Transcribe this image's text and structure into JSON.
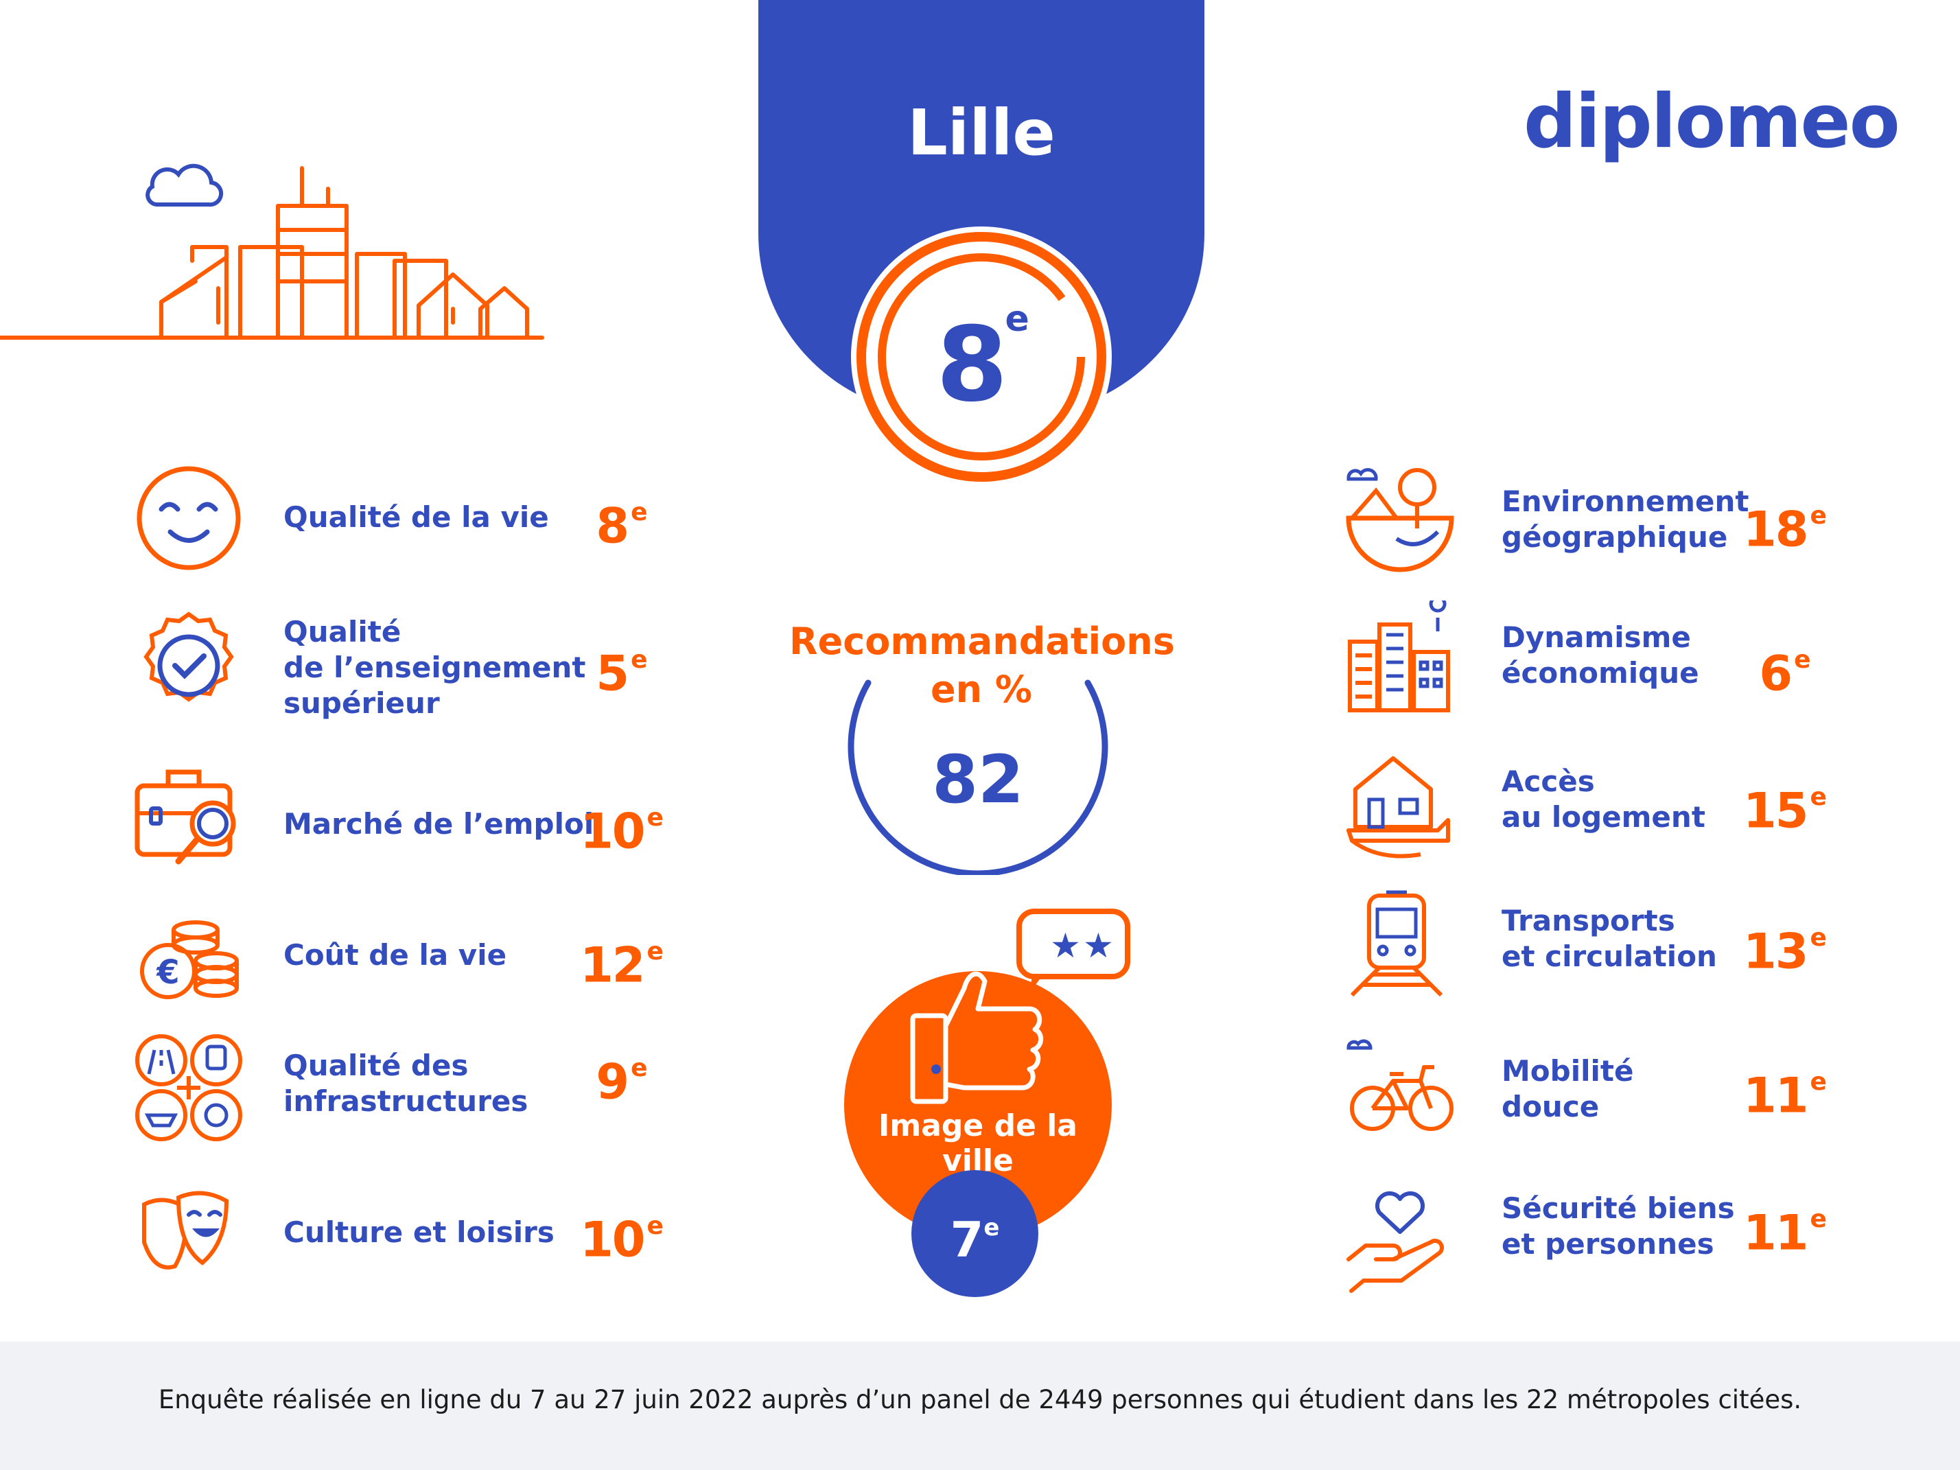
{
  "brand": {
    "logo_text": "diplomeo",
    "color_blue": "#344dbc",
    "color_orange": "#ff5c00"
  },
  "city": {
    "name": "Lille",
    "overall_rank": "8",
    "rank_suffix": "e"
  },
  "recommendation": {
    "title": "Recommandations en %",
    "value": "82"
  },
  "image_ville": {
    "label": "Image de la ville",
    "rank": "7",
    "suffix": "e"
  },
  "criteria_left": [
    {
      "icon": "smiley-icon",
      "label": "Qualité de la vie",
      "rank": "8",
      "suffix": "e"
    },
    {
      "icon": "badge-check-icon",
      "label": "Qualité\nde l’enseignement\nsupérieur",
      "rank": "5",
      "suffix": "e"
    },
    {
      "icon": "briefcase-magnifier-icon",
      "label": "Marché de l’emploi",
      "rank": "10",
      "suffix": "e"
    },
    {
      "icon": "coins-euro-icon",
      "label": "Coût de la vie",
      "rank": "12",
      "suffix": "e"
    },
    {
      "icon": "infrastructure-icon",
      "label": "Qualité des\n infrastructures",
      "rank": "9",
      "suffix": "e"
    },
    {
      "icon": "theater-masks-icon",
      "label": "Culture et loisirs",
      "rank": "10",
      "suffix": "e"
    }
  ],
  "criteria_right": [
    {
      "icon": "globe-nature-icon",
      "label": "Environnement\ngéographique",
      "rank": "18",
      "suffix": "e"
    },
    {
      "icon": "city-buildings-icon",
      "label": "Dynamisme\néconomique",
      "rank": "6",
      "suffix": "e"
    },
    {
      "icon": "house-hand-icon",
      "label": "Accès\nau logement",
      "rank": "15",
      "suffix": "e"
    },
    {
      "icon": "train-icon",
      "label": "Transports\net circulation",
      "rank": "13",
      "suffix": "e"
    },
    {
      "icon": "bicycle-icon",
      "label": "Mobilité\ndouce",
      "rank": "11",
      "suffix": "e"
    },
    {
      "icon": "heart-hand-icon",
      "label": "Sécurité biens\net personnes",
      "rank": "11",
      "suffix": "e"
    }
  ],
  "footer": {
    "text": "Enquête réalisée en ligne du 7 au 27 juin 2022 auprès d’un panel de 2449 personnes qui étudient dans les 22 métropoles citées."
  }
}
